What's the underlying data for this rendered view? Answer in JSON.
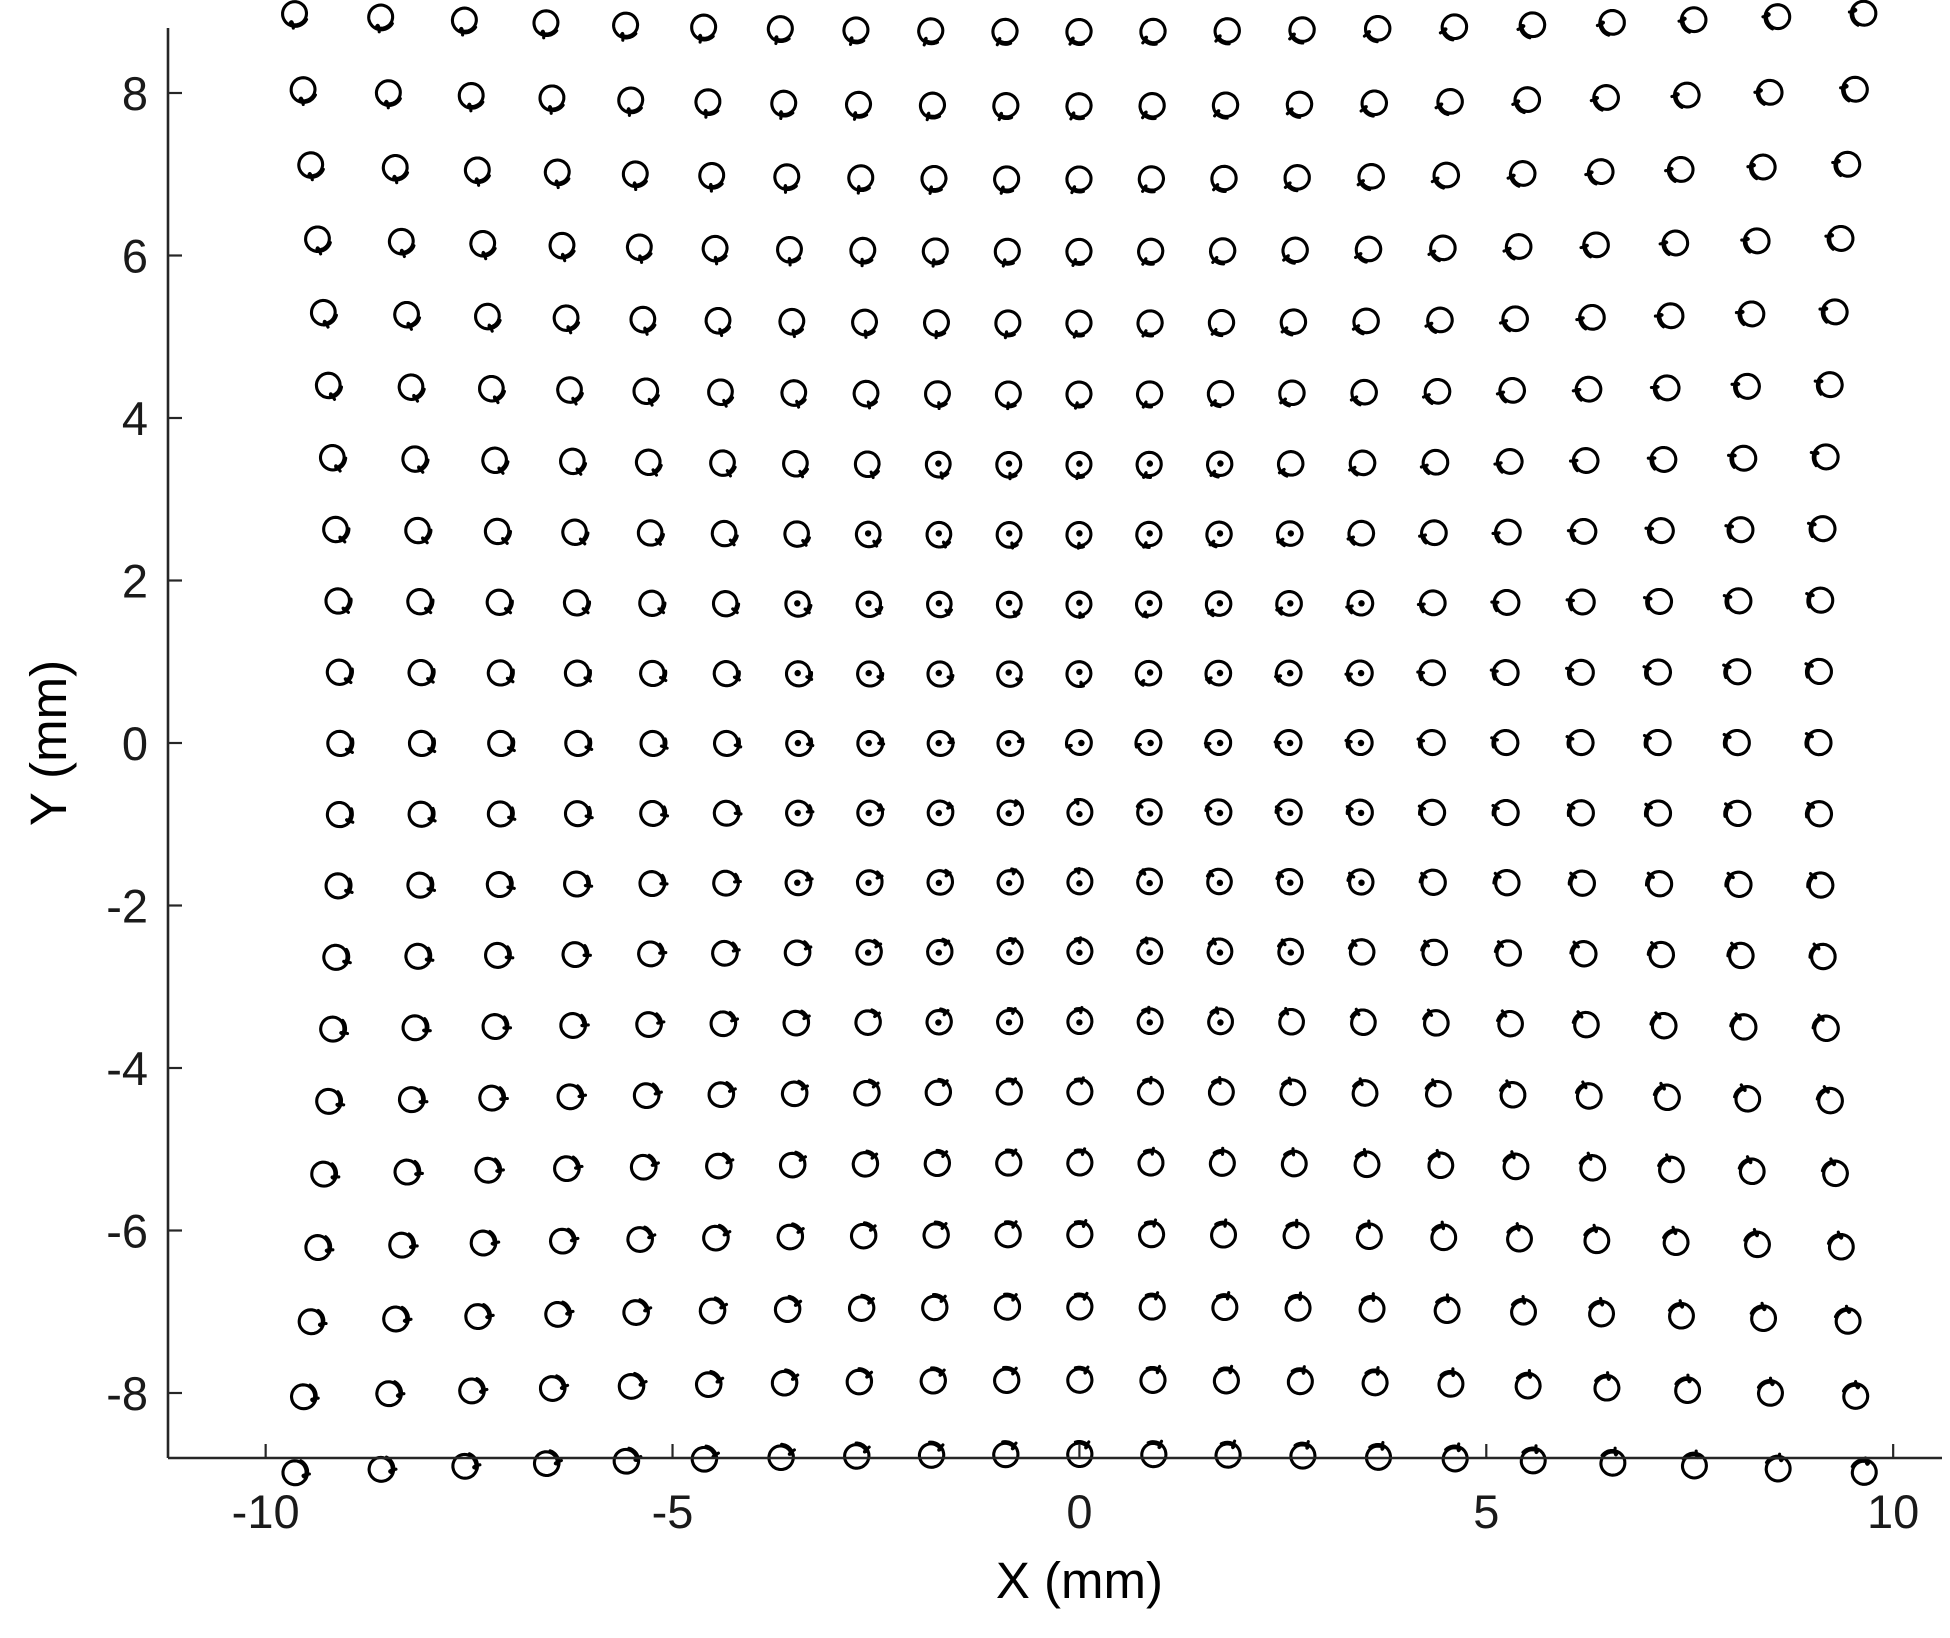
{
  "chart_data": {
    "type": "scatter",
    "title": "",
    "xlabel": "X (mm)",
    "ylabel": "Y (mm)",
    "xlim": [
      -11.2,
      10.6
    ],
    "ylim": [
      -8.8,
      8.8
    ],
    "xticks": [
      -10,
      -5,
      0,
      5,
      10
    ],
    "xtick_labels": [
      "-10",
      "-5",
      "0",
      "5",
      "10"
    ],
    "yticks": [
      -8,
      -6,
      -4,
      -2,
      0,
      2,
      4,
      6,
      8
    ],
    "ytick_labels": [
      "-8",
      "-6",
      "-4",
      "-2",
      "0",
      "2",
      "4",
      "6",
      "8"
    ],
    "grid": false,
    "legend": "none",
    "marker": "spiral-trace",
    "grid_points": {
      "columns": 21,
      "rows": 21,
      "x_range": [
        -8.5,
        8.5
      ],
      "y_range": [
        -8.5,
        8.5
      ],
      "distortion": "pincushion"
    },
    "colors": {
      "trace": "#000000",
      "axis": "#262626",
      "text": "#1a1a1a"
    }
  }
}
